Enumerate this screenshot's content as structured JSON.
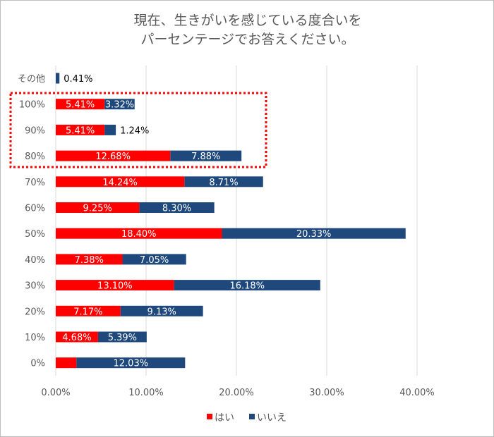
{
  "chart_data": {
    "type": "bar",
    "orientation": "horizontal",
    "stacked": true,
    "title": "現在、生きがいを感じている度合いを\nパーセンテージでお答えください。",
    "title_lines": [
      "現在、生きがいを感じている度合いを",
      "パーセンテージでお答えください。"
    ],
    "categories": [
      "その他",
      "100%",
      "90%",
      "80%",
      "70%",
      "60%",
      "50%",
      "40%",
      "30%",
      "20%",
      "10%",
      "0%"
    ],
    "series": [
      {
        "name": "はい",
        "color": "#ff0000",
        "values": [
          0.0,
          5.41,
          5.41,
          12.68,
          14.24,
          9.25,
          18.4,
          7.38,
          13.1,
          7.17,
          4.68,
          2.29
        ]
      },
      {
        "name": "いいえ",
        "color": "#1f497d",
        "values": [
          0.41,
          3.32,
          1.24,
          7.88,
          8.71,
          8.3,
          20.33,
          7.05,
          16.18,
          9.13,
          5.39,
          12.03
        ]
      }
    ],
    "xlim": [
      0,
      40
    ],
    "xticks": [
      "0.00%",
      "10.00%",
      "20.00%",
      "30.00%",
      "40.00%"
    ],
    "grid": true,
    "legend": "bottom",
    "highlight": {
      "categories": [
        "100%",
        "90%",
        "80%"
      ],
      "style": "red dotted box"
    }
  }
}
